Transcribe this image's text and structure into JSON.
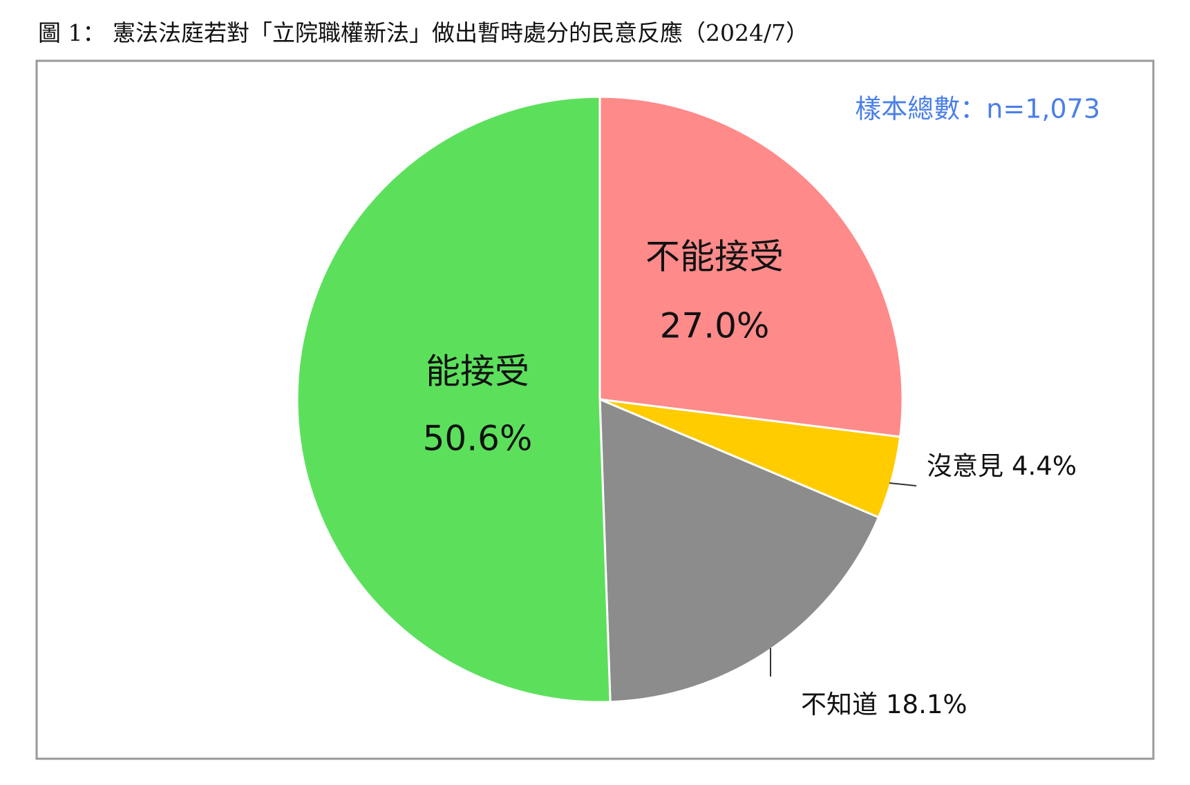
{
  "chart_data": {
    "type": "pie",
    "title": "圖 1： 憲法法庭若對「立院職權新法」做出暫時處分的民意反應（2024/7）",
    "annotation": "樣本總數：n=1,073",
    "categories": [
      "不能接受",
      "沒意見",
      "不知道",
      "能接受"
    ],
    "values": [
      27.0,
      4.4,
      18.1,
      50.6
    ],
    "value_labels": [
      "27.0%",
      "4.4%",
      "18.1%",
      "50.6%"
    ],
    "colors": [
      "#ff8a8a",
      "#ffcc00",
      "#8c8c8c",
      "#5ce05c"
    ]
  }
}
